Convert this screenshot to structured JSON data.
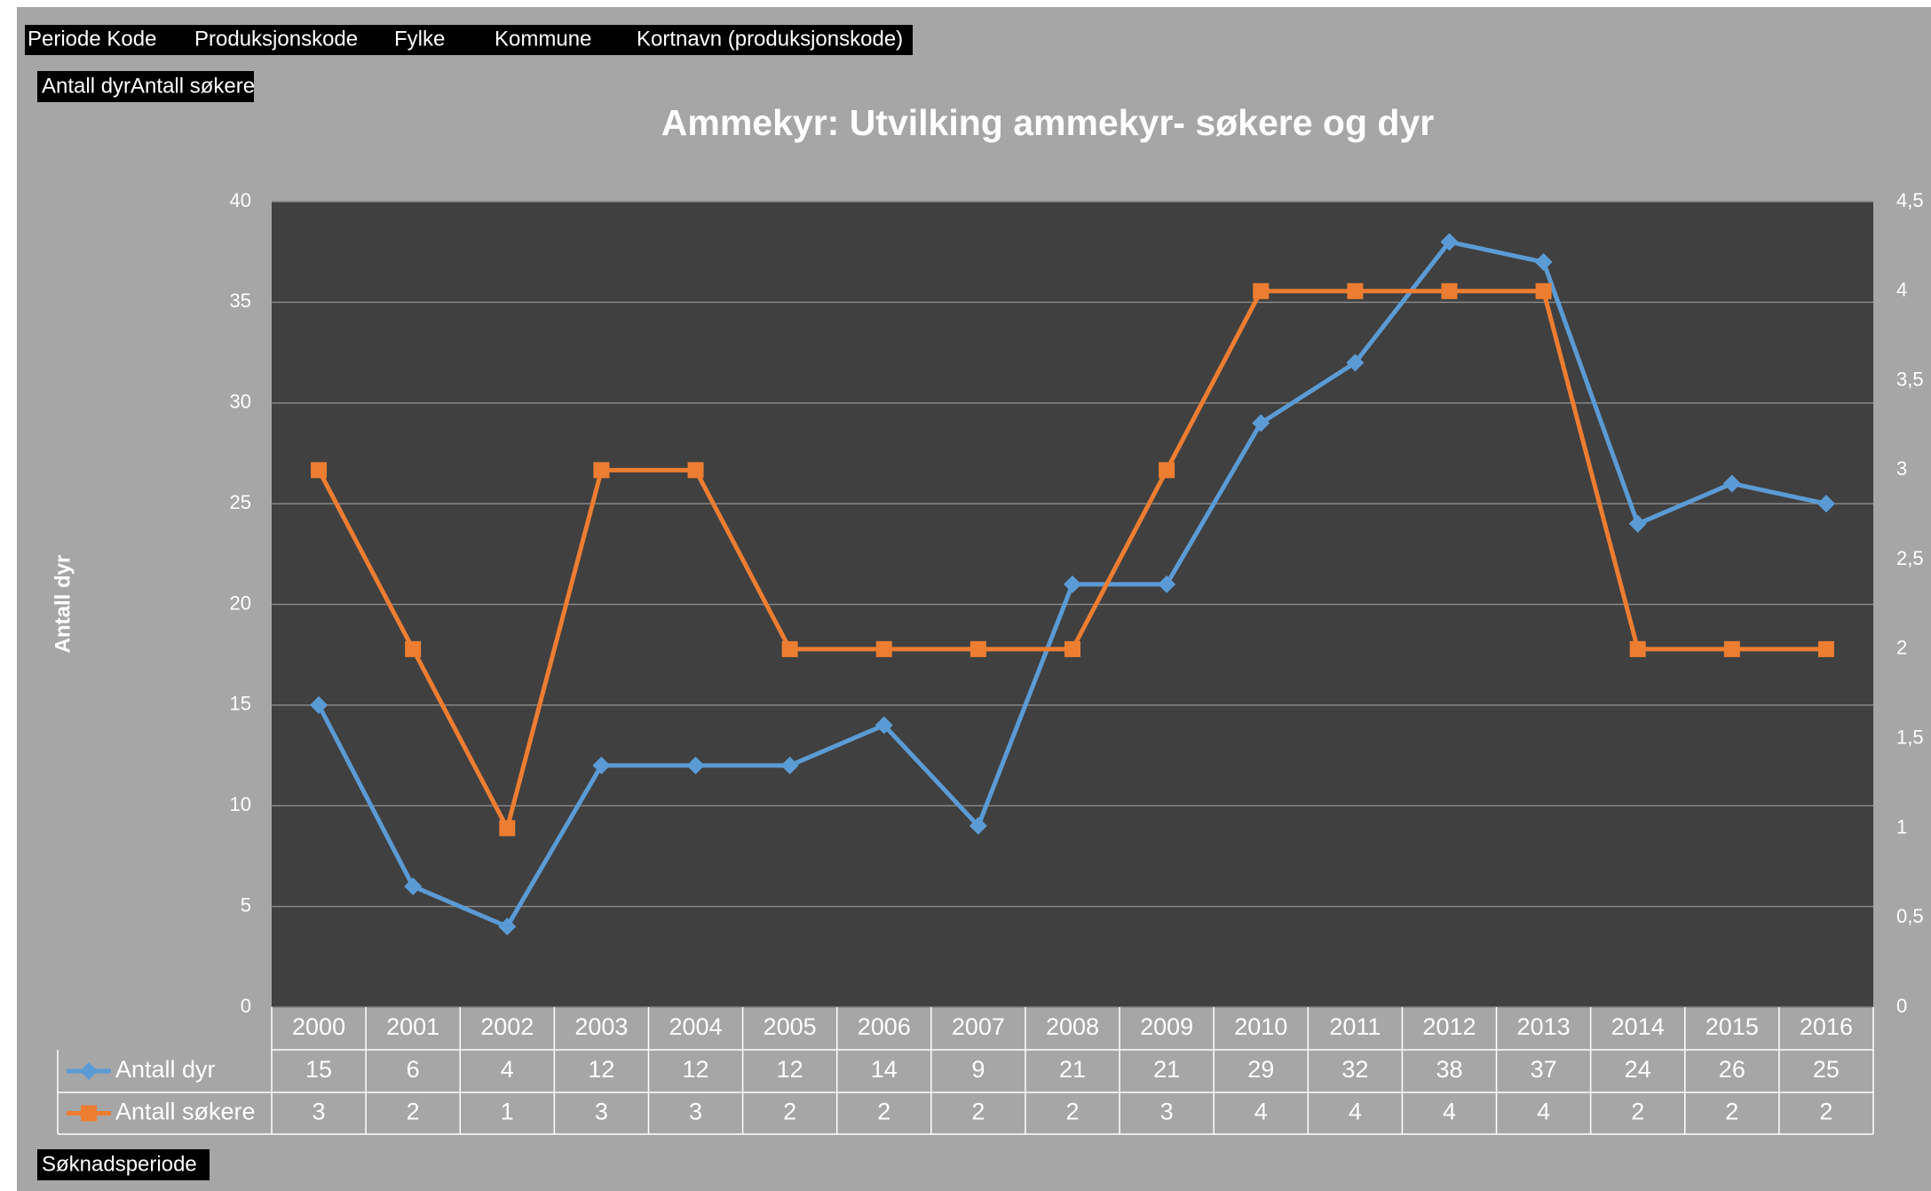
{
  "pivot_fields": {
    "filters": [
      "Periode Kode",
      "Produksjonskode",
      "Fylke",
      "Kommune",
      "Kortnavn (produksjonskode)"
    ],
    "values": "Antall dyrAntall søkere",
    "axis": "Søknadsperiode"
  },
  "chart_data": {
    "type": "line",
    "title": "Ammekyr: Utvilking ammekyr- søkere og dyr",
    "y_label": "Antall dyr",
    "categories": [
      "2000",
      "2001",
      "2002",
      "2003",
      "2004",
      "2005",
      "2006",
      "2007",
      "2008",
      "2009",
      "2010",
      "2011",
      "2012",
      "2013",
      "2014",
      "2015",
      "2016"
    ],
    "series": [
      {
        "name": "Antall dyr",
        "color": "#5b9bd5",
        "marker": "diamond",
        "values": [
          15,
          6,
          4,
          12,
          12,
          12,
          14,
          9,
          21,
          21,
          29,
          32,
          38,
          37,
          24,
          26,
          25
        ]
      },
      {
        "name": "Antall søkere",
        "color": "#ed7d31",
        "marker": "square",
        "axis": "y2",
        "values": [
          3,
          2,
          1,
          3,
          3,
          2,
          2,
          2,
          2,
          3,
          4,
          4,
          4,
          4,
          2,
          2,
          2
        ]
      }
    ],
    "ylim": [
      0,
      40
    ],
    "yticks": [
      0,
      5,
      10,
      15,
      20,
      25,
      30,
      35,
      40
    ],
    "y2lim": [
      0,
      4.5
    ],
    "y2ticks": [
      0,
      {
        "value": 0.5,
        "label": "0,5"
      },
      1,
      {
        "value": 1.5,
        "label": "1,5"
      },
      2,
      {
        "value": 2.5,
        "label": "2,5"
      },
      3,
      {
        "value": 3.5,
        "label": "3,5"
      },
      4,
      {
        "value": 4.5,
        "label": "4,5"
      }
    ],
    "grid": true
  }
}
